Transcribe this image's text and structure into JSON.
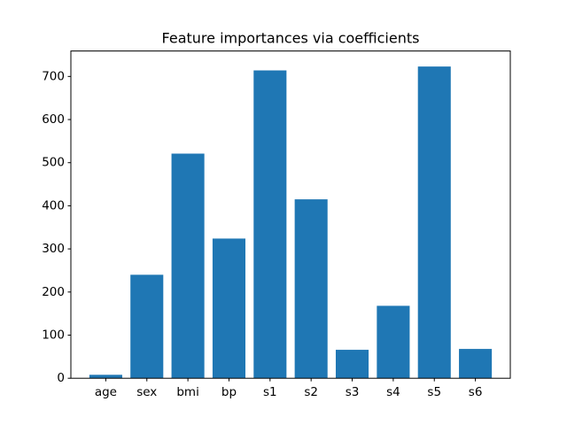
{
  "chart_data": {
    "type": "bar",
    "title": "Feature importances via coefficients",
    "categories": [
      "age",
      "sex",
      "bmi",
      "bp",
      "s1",
      "s2",
      "s3",
      "s4",
      "s5",
      "s6"
    ],
    "values": [
      8,
      240,
      521,
      324,
      714,
      415,
      66,
      168,
      723,
      68
    ],
    "color": "#1f77b4",
    "ylim": [
      0,
      759
    ],
    "yticks": [
      0,
      100,
      200,
      300,
      400,
      500,
      600,
      700
    ],
    "grid": false
  }
}
